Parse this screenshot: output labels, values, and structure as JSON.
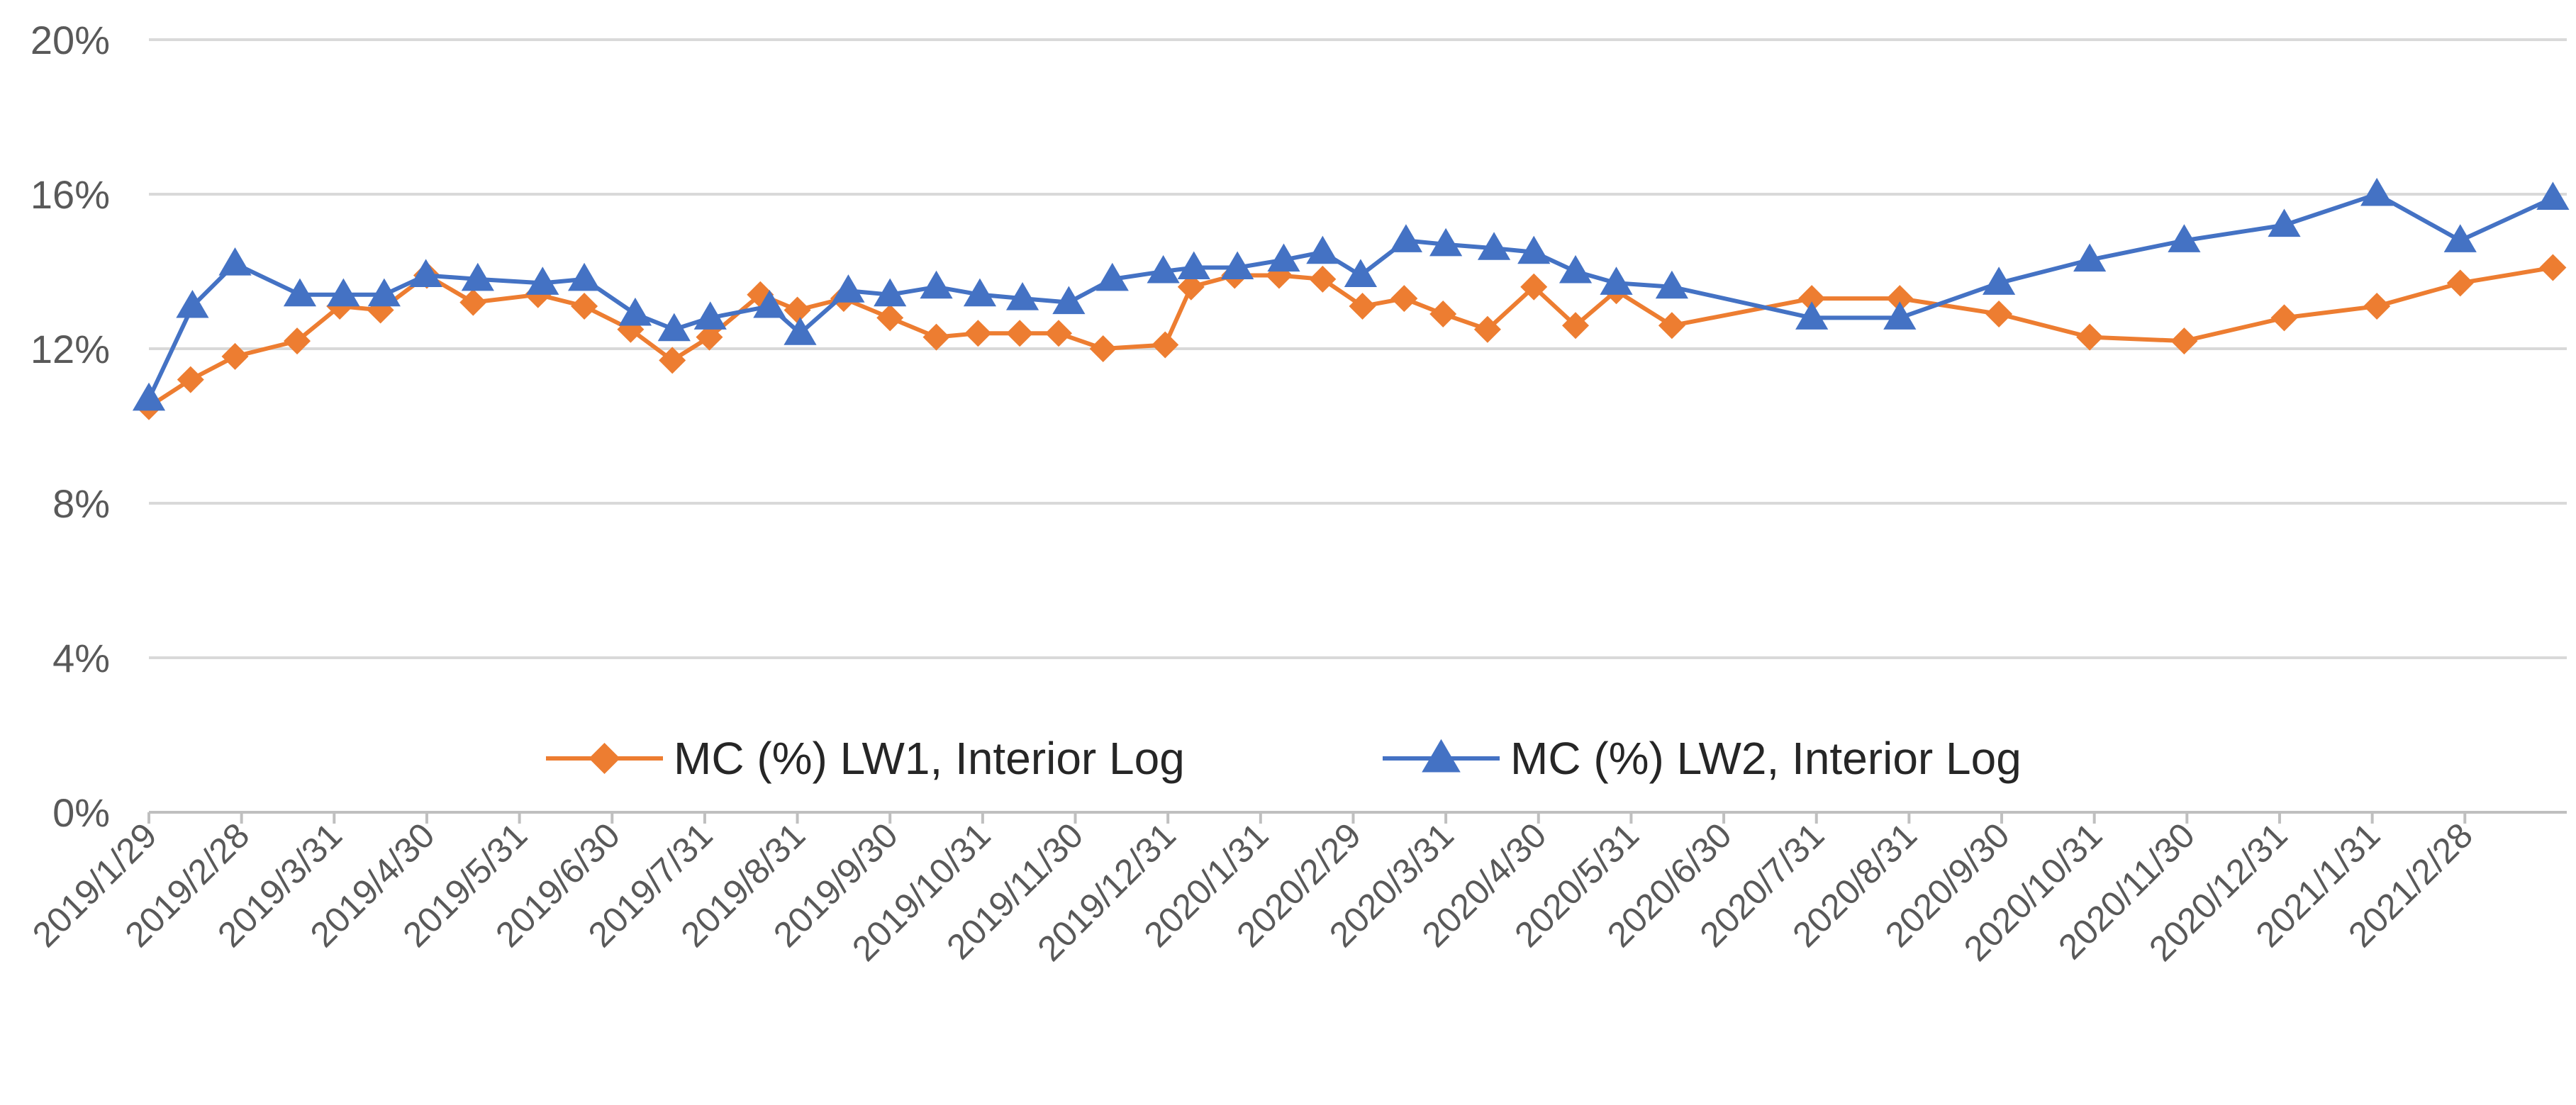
{
  "chart_data": {
    "type": "line",
    "title": "",
    "xlabel": "",
    "ylabel": "",
    "ylim": [
      0,
      20
    ],
    "y_ticks": [
      0,
      4,
      8,
      12,
      16,
      20
    ],
    "y_tick_labels": [
      "0%",
      "4%",
      "8%",
      "12%",
      "16%",
      "20%"
    ],
    "x_tick_labels": [
      "2019/1/29",
      "2019/2/28",
      "2019/3/31",
      "2019/4/30",
      "2019/5/31",
      "2019/6/30",
      "2019/7/31",
      "2019/8/31",
      "2019/9/30",
      "2019/10/31",
      "2019/11/30",
      "2019/12/31",
      "2020/1/31",
      "2020/2/29",
      "2020/3/31",
      "2020/4/30",
      "2020/5/31",
      "2020/6/30",
      "2020/7/31",
      "2020/8/31",
      "2020/9/30",
      "2020/10/31",
      "2020/11/30",
      "2020/12/31",
      "2021/1/31",
      "2021/2/28"
    ],
    "x_range": [
      0,
      26.1
    ],
    "grid": true,
    "legend_position": "inside-bottom",
    "series": [
      {
        "name": "MC (%) LW1, Interior Log",
        "color": "#ED7D31",
        "marker": "diamond",
        "points": [
          [
            0,
            10.5
          ],
          [
            0.45,
            11.2
          ],
          [
            0.93,
            11.8
          ],
          [
            1.6,
            12.2
          ],
          [
            2.06,
            13.1
          ],
          [
            2.5,
            13.0
          ],
          [
            3.0,
            13.9
          ],
          [
            3.5,
            13.2
          ],
          [
            4.2,
            13.4
          ],
          [
            4.7,
            13.1
          ],
          [
            5.2,
            12.5
          ],
          [
            5.65,
            11.7
          ],
          [
            6.05,
            12.3
          ],
          [
            6.6,
            13.4
          ],
          [
            7.0,
            13.0
          ],
          [
            7.5,
            13.3
          ],
          [
            8.0,
            12.8
          ],
          [
            8.5,
            12.3
          ],
          [
            8.95,
            12.4
          ],
          [
            9.4,
            12.4
          ],
          [
            9.82,
            12.4
          ],
          [
            10.3,
            12.0
          ],
          [
            10.97,
            12.1
          ],
          [
            11.25,
            13.6
          ],
          [
            11.72,
            13.9
          ],
          [
            12.2,
            13.9
          ],
          [
            12.67,
            13.8
          ],
          [
            13.1,
            13.1
          ],
          [
            13.55,
            13.3
          ],
          [
            13.97,
            12.9
          ],
          [
            14.45,
            12.5
          ],
          [
            14.95,
            13.6
          ],
          [
            15.4,
            12.6
          ],
          [
            15.84,
            13.5
          ],
          [
            16.44,
            12.6
          ],
          [
            17.95,
            13.3
          ],
          [
            18.9,
            13.3
          ],
          [
            19.97,
            12.9
          ],
          [
            20.95,
            12.3
          ],
          [
            21.97,
            12.2
          ],
          [
            23.05,
            12.8
          ],
          [
            24.05,
            13.1
          ],
          [
            24.95,
            13.7
          ],
          [
            25.95,
            14.1
          ]
        ]
      },
      {
        "name": "MC (%) LW2, Interior Log",
        "color": "#4472C4",
        "marker": "triangle",
        "points": [
          [
            0,
            10.7
          ],
          [
            0.47,
            13.1
          ],
          [
            0.93,
            14.2
          ],
          [
            1.63,
            13.4
          ],
          [
            2.1,
            13.4
          ],
          [
            2.54,
            13.4
          ],
          [
            2.99,
            13.9
          ],
          [
            3.55,
            13.8
          ],
          [
            4.25,
            13.7
          ],
          [
            4.7,
            13.8
          ],
          [
            5.25,
            12.9
          ],
          [
            5.67,
            12.5
          ],
          [
            6.06,
            12.8
          ],
          [
            6.7,
            13.1
          ],
          [
            7.03,
            12.4
          ],
          [
            7.55,
            13.5
          ],
          [
            8.0,
            13.4
          ],
          [
            8.5,
            13.6
          ],
          [
            8.97,
            13.4
          ],
          [
            9.43,
            13.3
          ],
          [
            9.93,
            13.2
          ],
          [
            10.4,
            13.8
          ],
          [
            10.95,
            14.0
          ],
          [
            11.28,
            14.1
          ],
          [
            11.75,
            14.1
          ],
          [
            12.25,
            14.3
          ],
          [
            12.67,
            14.5
          ],
          [
            13.08,
            13.9
          ],
          [
            13.57,
            14.8
          ],
          [
            14.0,
            14.7
          ],
          [
            14.52,
            14.6
          ],
          [
            14.95,
            14.5
          ],
          [
            15.4,
            14.0
          ],
          [
            15.84,
            13.7
          ],
          [
            16.44,
            13.6
          ],
          [
            17.95,
            12.8
          ],
          [
            18.9,
            12.8
          ],
          [
            19.97,
            13.7
          ],
          [
            20.95,
            14.3
          ],
          [
            21.97,
            14.8
          ],
          [
            23.05,
            15.2
          ],
          [
            24.05,
            16.0
          ],
          [
            24.95,
            14.8
          ],
          [
            25.95,
            15.9
          ]
        ]
      }
    ]
  }
}
